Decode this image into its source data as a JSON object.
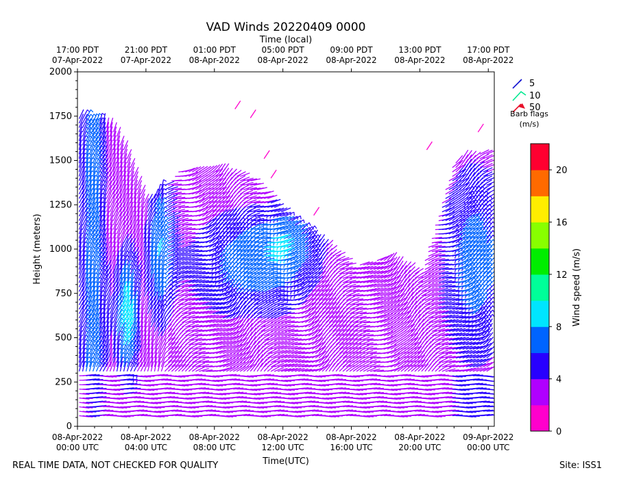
{
  "chart_data": {
    "type": "wind-barb",
    "title": "VAD Winds 20220409 0000",
    "top_axis_label": "Time (local)",
    "xlabel": "Time(UTC)",
    "ylabel": "Height (meters)",
    "xlim_hours_utc": [
      0,
      24.35
    ],
    "ylim": [
      0,
      2000
    ],
    "y_ticks": [
      0,
      250,
      500,
      750,
      1000,
      1250,
      1500,
      1750,
      2000
    ],
    "x_ticks": [
      {
        "hours": 0,
        "line1": "08-Apr-2022",
        "line2": "00:00 UTC"
      },
      {
        "hours": 4,
        "line1": "08-Apr-2022",
        "line2": "04:00 UTC"
      },
      {
        "hours": 8,
        "line1": "08-Apr-2022",
        "line2": "08:00 UTC"
      },
      {
        "hours": 12,
        "line1": "08-Apr-2022",
        "line2": "12:00 UTC"
      },
      {
        "hours": 16,
        "line1": "08-Apr-2022",
        "line2": "16:00 UTC"
      },
      {
        "hours": 20,
        "line1": "08-Apr-2022",
        "line2": "20:00 UTC"
      },
      {
        "hours": 24,
        "line1": "09-Apr-2022",
        "line2": "00:00 UTC"
      }
    ],
    "top_ticks": [
      {
        "hours": 0,
        "line1": "17:00 PDT",
        "line2": "07-Apr-2022"
      },
      {
        "hours": 4,
        "line1": "21:00 PDT",
        "line2": "07-Apr-2022"
      },
      {
        "hours": 8,
        "line1": "01:00 PDT",
        "line2": "08-Apr-2022"
      },
      {
        "hours": 12,
        "line1": "05:00 PDT",
        "line2": "08-Apr-2022"
      },
      {
        "hours": 16,
        "line1": "09:00 PDT",
        "line2": "08-Apr-2022"
      },
      {
        "hours": 20,
        "line1": "13:00 PDT",
        "line2": "08-Apr-2022"
      },
      {
        "hours": 24,
        "line1": "17:00 PDT",
        "line2": "08-Apr-2022"
      }
    ],
    "legend": {
      "items": [
        {
          "label": "5",
          "color": "#1010d0"
        },
        {
          "label": "10",
          "color": "#00e890"
        },
        {
          "label": "50",
          "color": "#e8102a"
        }
      ],
      "caption_line1": "Barb flags",
      "caption_line2": "(m/s)"
    },
    "colorbar": {
      "label": "Wind speed (m/s)",
      "range": [
        0,
        22
      ],
      "ticks": [
        0,
        4,
        8,
        12,
        16,
        20
      ],
      "colors": [
        "#ff00cc",
        "#b000ff",
        "#2800ff",
        "#0064ff",
        "#00e5ff",
        "#00ff99",
        "#00ee00",
        "#88ff00",
        "#ffee00",
        "#ff6a00",
        "#ff0030"
      ]
    },
    "speed_field_m_s": {
      "description": "Approximate wind speed by time (hours since 08-Apr-2022 00 UTC) and height (m)",
      "height_levels_m": [
        50,
        250,
        500,
        750,
        1000,
        1250,
        1500,
        1750
      ],
      "time_hours": [
        0,
        2,
        3,
        4,
        6,
        8,
        10,
        12,
        14,
        16,
        18,
        20,
        22,
        24
      ],
      "data_top_m": [
        1750,
        1700,
        1500,
        1250,
        1450,
        1450,
        1400,
        1200,
        1050,
        900,
        950,
        850,
        1500,
        1550
      ]
    }
  },
  "footer": {
    "left": "REAL TIME DATA, NOT CHECKED FOR QUALITY",
    "right": "Site: ISS1"
  }
}
